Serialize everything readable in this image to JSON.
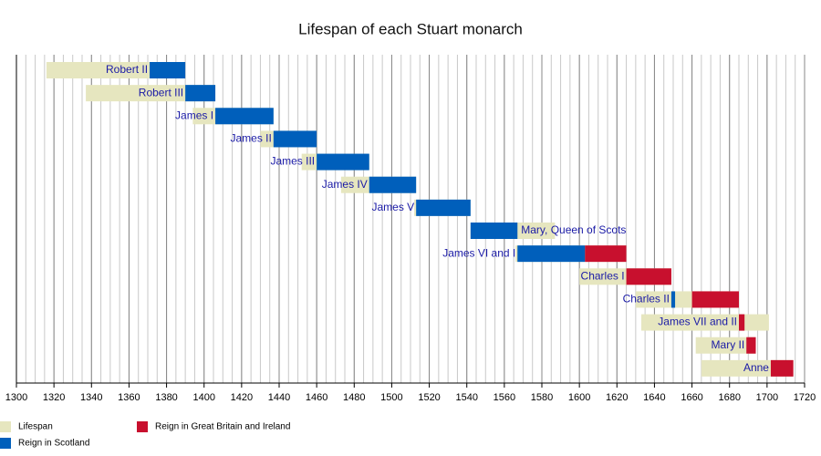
{
  "chart_data": {
    "type": "timeline",
    "title": "Lifespan of each Stuart monarch",
    "categories": [
      "Robert II",
      "Robert III",
      "James I",
      "James II",
      "James III",
      "James IV",
      "James V",
      "Mary, Queen of Scots",
      "James VI and I",
      "Charles I",
      "Charles II",
      "James VII and II",
      "Mary II",
      "Anne"
    ],
    "series": [
      {
        "name": "Lifespan",
        "color": "#e6e6bf",
        "values": [
          [
            1316,
            1390
          ],
          [
            1337,
            1406
          ],
          [
            1394,
            1437
          ],
          [
            1430,
            1460
          ],
          [
            1452,
            1488
          ],
          [
            1473,
            1513
          ],
          [
            1512,
            1542
          ],
          [
            1542,
            1587
          ],
          [
            1566,
            1625
          ],
          [
            1600,
            1649
          ],
          [
            1630,
            1685
          ],
          [
            1633,
            1701
          ],
          [
            1662,
            1694
          ],
          [
            1665,
            1714
          ]
        ]
      },
      {
        "name": "Reign in Scotland",
        "color": "#005fbb",
        "values": [
          [
            1371,
            1390
          ],
          [
            1390,
            1406
          ],
          [
            1406,
            1437
          ],
          [
            1437,
            1460
          ],
          [
            1460,
            1488
          ],
          [
            1488,
            1513
          ],
          [
            1513,
            1542
          ],
          [
            1542,
            1567
          ],
          [
            1567,
            1603
          ],
          null,
          [
            1649,
            1651
          ],
          null,
          null,
          null
        ]
      },
      {
        "name": "Reign in Great Britain and Ireland",
        "color": "#c8102e",
        "values": [
          null,
          null,
          null,
          null,
          null,
          null,
          null,
          null,
          [
            1603,
            1625
          ],
          [
            1625,
            1649
          ],
          [
            1660,
            1685
          ],
          [
            1685,
            1688
          ],
          [
            1689,
            1694
          ],
          [
            1702,
            1714
          ]
        ]
      }
    ],
    "xlim": [
      1300,
      1720
    ],
    "xticks": [
      1300,
      1320,
      1340,
      1360,
      1380,
      1400,
      1420,
      1440,
      1460,
      1480,
      1500,
      1520,
      1540,
      1560,
      1580,
      1600,
      1620,
      1640,
      1660,
      1680,
      1700,
      1720
    ],
    "minor_grid_step": 5,
    "grid": true,
    "label_color": "#1a1aa6"
  }
}
